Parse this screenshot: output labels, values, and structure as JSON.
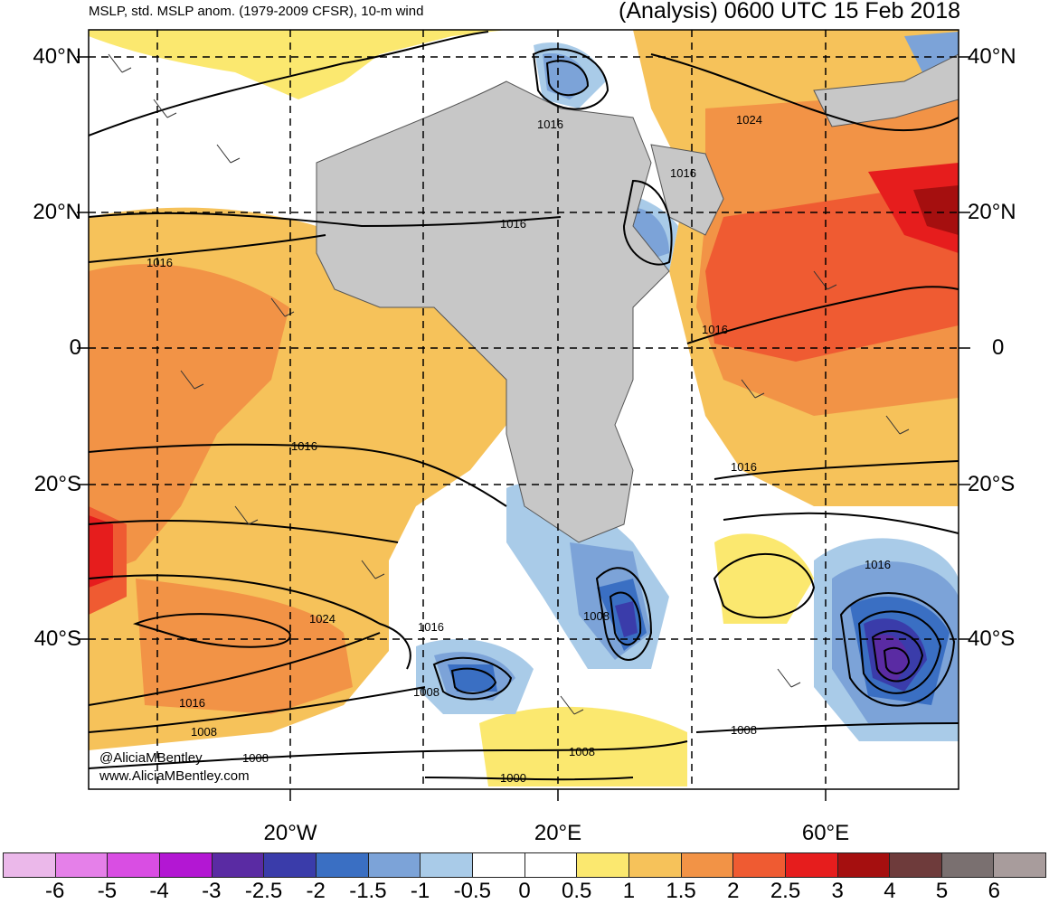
{
  "header": {
    "left": "MSLP, std. MSLP anom. (1979-2009 CFSR), 10-m wind",
    "right": "(Analysis) 0600 UTC 15 Feb 2018"
  },
  "axes": {
    "lat_labels": [
      "40°N",
      "20°N",
      "0",
      "20°S",
      "40°S"
    ],
    "lon_labels": [
      "20°W",
      "20°E",
      "60°E"
    ]
  },
  "isobar_labels": [
    "1016",
    "1024",
    "1016",
    "1016",
    "1016",
    "1016",
    "1016",
    "1016",
    "1016",
    "1008",
    "1016",
    "1024",
    "1008",
    "1016",
    "1008",
    "1008",
    "1008",
    "1000",
    "1008"
  ],
  "credit": [
    "@AliciaMBentley",
    "www.AliciaMBentley.com"
  ],
  "colorbar": {
    "labels": [
      "-6",
      "-5",
      "-4",
      "-3",
      "-2.5",
      "-2",
      "-1.5",
      "-1",
      "-0.5",
      "0",
      "0.5",
      "1",
      "1.5",
      "2",
      "2.5",
      "3",
      "4",
      "5",
      "6"
    ],
    "colors": [
      "#ebb8ea",
      "#e580e9",
      "#d94ee3",
      "#b317d3",
      "#5a2ba3",
      "#3a3caa",
      "#3a6fc3",
      "#7ca3d8",
      "#a9cbe8",
      "#ffffff",
      "#ffffff",
      "#fbe86f",
      "#f6c25a",
      "#f29346",
      "#ef5b32",
      "#e61d1d",
      "#a50f0f",
      "#6e3b3b",
      "#7a7070",
      "#a89c9c"
    ]
  },
  "palette": {
    "land": "#c7c7c7",
    "ocean": "#ffffff"
  }
}
